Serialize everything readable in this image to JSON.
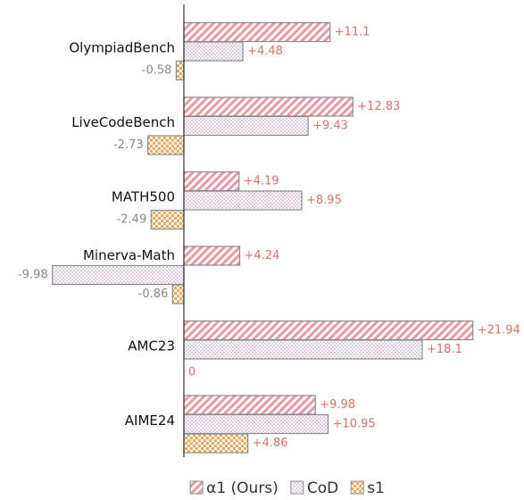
{
  "chart_data": {
    "type": "barh",
    "categories": [
      "OlympiadBench",
      "LiveCodeBench",
      "MATH500",
      "Minerva-Math",
      "AMC23",
      "AIME24"
    ],
    "series": [
      {
        "name": "α1 (Ours)",
        "color": "#e79aa5",
        "pattern": "diagonal",
        "values": [
          11.1,
          12.83,
          4.19,
          4.24,
          21.94,
          9.98
        ],
        "value_labels": [
          "+11.1",
          "+12.83",
          "+4.19",
          "+4.24",
          "+21.94",
          "+9.98"
        ]
      },
      {
        "name": "CoD",
        "color": "#c9a3cf",
        "pattern": "dots",
        "values": [
          4.48,
          9.43,
          8.95,
          -9.98,
          18.1,
          10.95
        ],
        "value_labels": [
          "+4.48",
          "+9.43",
          "+8.95",
          "-9.98",
          "+18.1",
          "+10.95"
        ]
      },
      {
        "name": "s1",
        "color": "#e6a95c",
        "pattern": "checker",
        "values": [
          -0.58,
          -2.73,
          -2.49,
          -0.86,
          0,
          4.86
        ],
        "value_labels": [
          "-0.58",
          "-2.73",
          "-2.49",
          "-0.86",
          "0",
          "+4.86"
        ]
      }
    ],
    "xlim": [
      -10.3,
      22.3
    ]
  }
}
